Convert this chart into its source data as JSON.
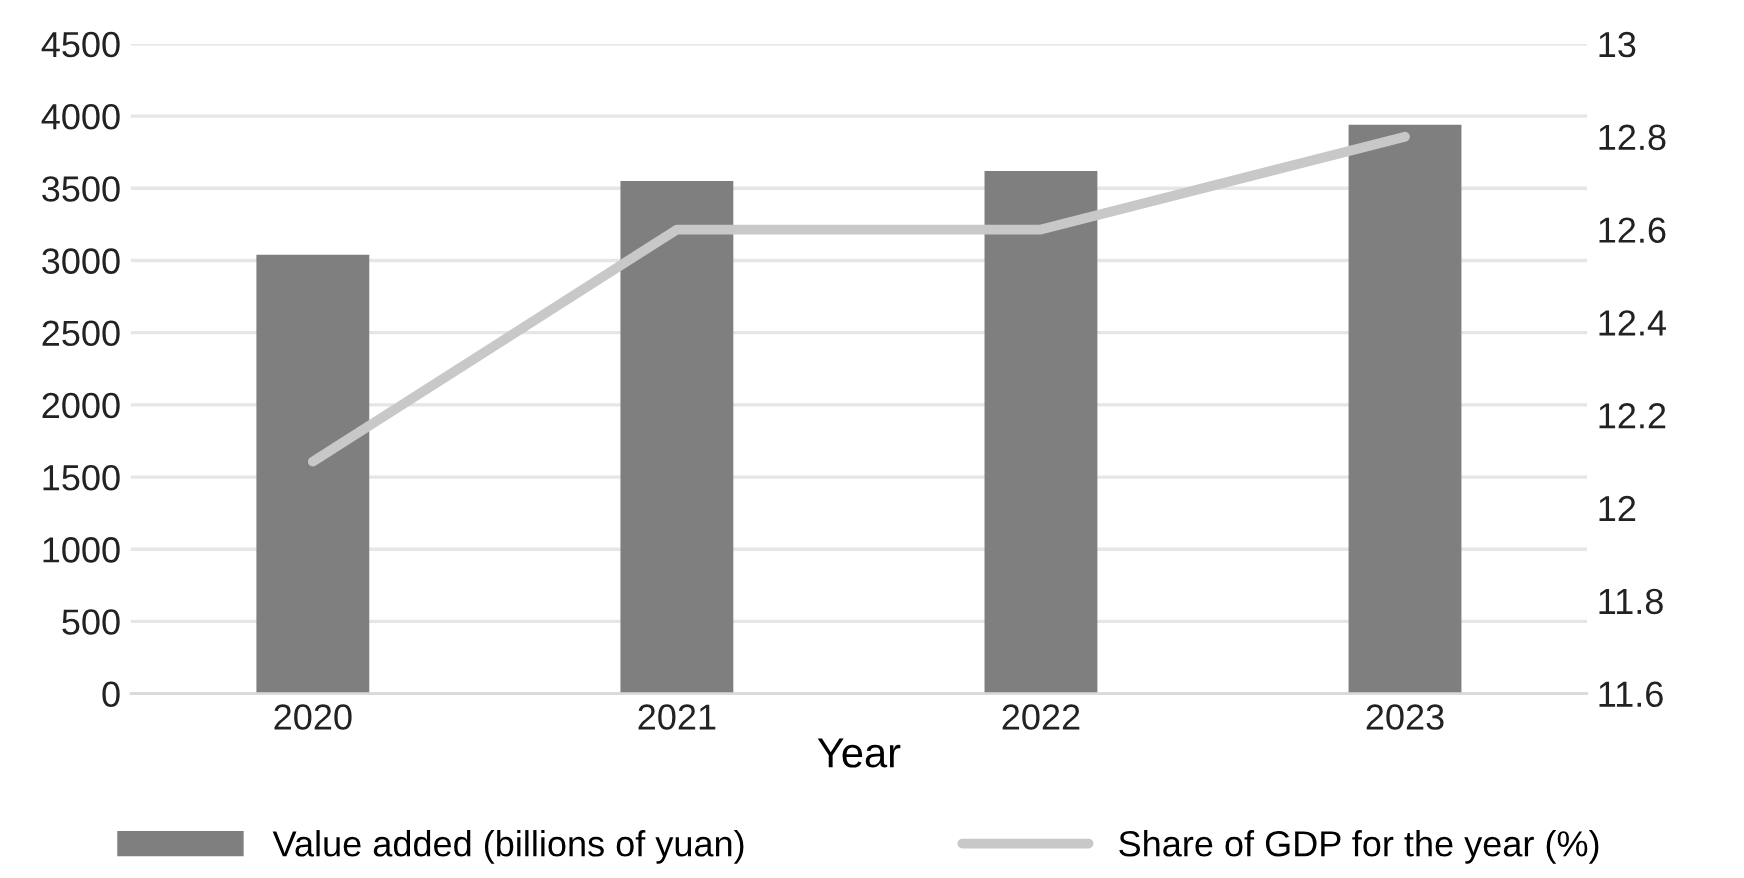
{
  "chart_data": {
    "type": "bar",
    "xlabel": "Year",
    "categories": [
      "2020",
      "2021",
      "2022",
      "2023"
    ],
    "series": [
      {
        "name": "Value added (billions of yuan)",
        "color": "#7f7f7f",
        "values": [
          3040,
          3550,
          3620,
          3940
        ]
      },
      {
        "name": "Share of GDP for the year (%)",
        "type": "line",
        "axis": "y2",
        "color": "#c8c8c8",
        "values": [
          12.1,
          12.6,
          12.6,
          12.8
        ]
      }
    ],
    "ylim": [
      0,
      4500
    ],
    "yticks": [
      0,
      500,
      1000,
      1500,
      2000,
      2500,
      3000,
      3500,
      4000,
      4500
    ],
    "y2lim": [
      11.6,
      13
    ],
    "y2ticks": [
      11.6,
      11.8,
      12,
      12.2,
      12.4,
      12.6,
      12.8,
      13
    ],
    "grid": "y",
    "legend": "bottom",
    "marker": "none",
    "line_style": "solid"
  }
}
